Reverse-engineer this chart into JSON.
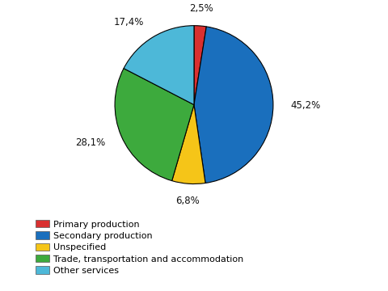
{
  "labels": [
    "Primary production",
    "Secondary production",
    "Unspecified",
    "Trade, transportation and accommodation",
    "Other services"
  ],
  "values": [
    2.5,
    45.2,
    6.8,
    28.1,
    17.4
  ],
  "colors": [
    "#d93030",
    "#1a6fbd",
    "#f5c518",
    "#3daa3d",
    "#4db8d8"
  ],
  "pct_labels": [
    "2,5%",
    "45,2%",
    "6,8%",
    "28,1%",
    "17,4%"
  ],
  "background_color": "#ffffff",
  "edge_color": "#000000",
  "edge_width": 0.8,
  "startangle": 90,
  "legend_fontsize": 8.0,
  "label_fontsize": 8.5
}
